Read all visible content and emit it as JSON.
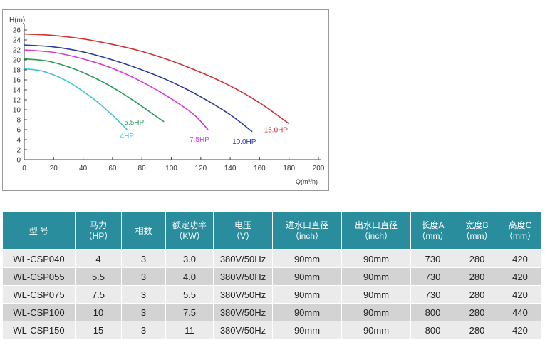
{
  "chart_data": {
    "type": "line",
    "ylabel": "H(m)",
    "xlabel": "Q(m³/h)",
    "xlim": [
      0,
      200
    ],
    "ylim": [
      0,
      26
    ],
    "x_ticks": [
      "0",
      "20",
      "40",
      "60",
      "80",
      "100",
      "120",
      "140",
      "160",
      "180",
      "200"
    ],
    "y_ticks": [
      "0",
      "2",
      "4",
      "6",
      "8",
      "10",
      "12",
      "14",
      "16",
      "18",
      "20",
      "22",
      "24",
      "26"
    ],
    "grid": false,
    "series": [
      {
        "name": "4HP",
        "color": "#3cc4d8",
        "x": [
          0,
          10,
          20,
          30,
          40,
          50,
          60,
          70
        ],
        "y": [
          18.2,
          17.9,
          17.0,
          15.6,
          13.7,
          11.5,
          8.9,
          6.0
        ]
      },
      {
        "name": "5.5HP",
        "color": "#2a9a5a",
        "x": [
          0,
          15,
          30,
          45,
          60,
          75,
          90,
          95
        ],
        "y": [
          20.2,
          19.8,
          18.6,
          16.8,
          14.5,
          11.7,
          8.6,
          7.6
        ]
      },
      {
        "name": "7.5HP",
        "color": "#d63ad6",
        "x": [
          0,
          20,
          40,
          60,
          80,
          100,
          115,
          125
        ],
        "y": [
          22.0,
          21.5,
          20.2,
          18.3,
          15.6,
          12.2,
          9.1,
          6.0
        ]
      },
      {
        "name": "10.0HP",
        "color": "#2b3a9c",
        "x": [
          0,
          20,
          40,
          60,
          80,
          100,
          120,
          140,
          155
        ],
        "y": [
          23.0,
          22.6,
          21.6,
          20.0,
          18.0,
          15.6,
          12.6,
          9.0,
          5.6
        ]
      },
      {
        "name": "15.0HP",
        "color": "#cf3333",
        "x": [
          0,
          20,
          40,
          60,
          80,
          100,
          120,
          140,
          160,
          180
        ],
        "y": [
          25.2,
          24.9,
          24.2,
          23.1,
          21.7,
          19.8,
          17.5,
          14.8,
          11.4,
          7.2
        ]
      }
    ],
    "annotations": [
      "4HP",
      "5.5HP",
      "7.5HP",
      "10.0HP",
      "15.0HP"
    ]
  },
  "table": {
    "headers": [
      [
        "型 号"
      ],
      [
        "马力",
        "（HP）"
      ],
      [
        "相数"
      ],
      [
        "额定功率",
        "（KW）"
      ],
      [
        "电压",
        "（V）"
      ],
      [
        "进水口直径",
        "（inch）"
      ],
      [
        "出水口直径",
        "（inch）"
      ],
      [
        "长度A",
        "（mm）"
      ],
      [
        "宽度B",
        "（mm）"
      ],
      [
        "高度C",
        "（mm）"
      ]
    ],
    "rows": [
      [
        "WL-CSP040",
        "4",
        "3",
        "3.0",
        "380V/50Hz",
        "90mm",
        "90mm",
        "730",
        "280",
        "420"
      ],
      [
        "WL-CSP055",
        "5.5",
        "3",
        "4.0",
        "380V/50Hz",
        "90mm",
        "90mm",
        "730",
        "280",
        "420"
      ],
      [
        "WL-CSP075",
        "7.5",
        "3",
        "5.5",
        "380V/50Hz",
        "90mm",
        "90mm",
        "730",
        "280",
        "420"
      ],
      [
        "WL-CSP100",
        "10",
        "3",
        "7.5",
        "380V/50Hz",
        "90mm",
        "90mm",
        "800",
        "280",
        "440"
      ],
      [
        "WL-CSP150",
        "15",
        "3",
        "11",
        "380V/50Hz",
        "90mm",
        "90mm",
        "800",
        "280",
        "420"
      ]
    ]
  }
}
